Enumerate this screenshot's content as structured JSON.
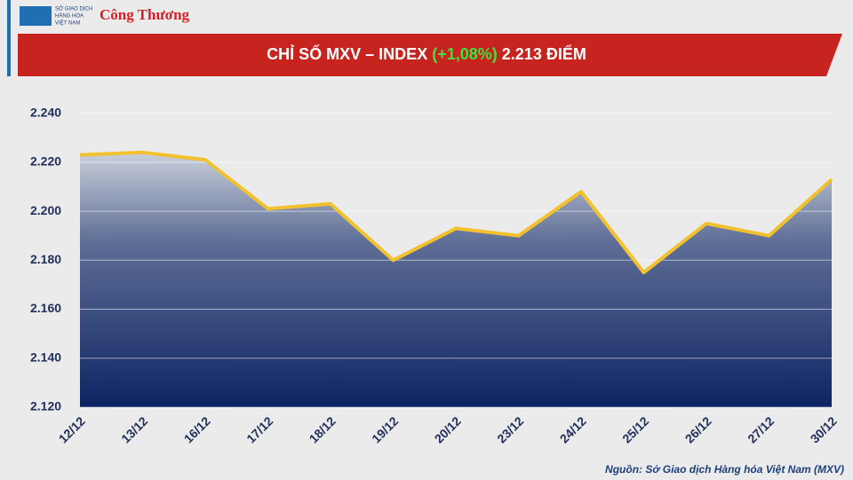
{
  "header": {
    "exchange_name": [
      "SỞ GIAO DỊCH",
      "HÀNG HÓA",
      "VIỆT NAM"
    ],
    "publisher": "Công Thương"
  },
  "chart_data": {
    "type": "area",
    "title": "CHỈ SỐ MXV – INDEX",
    "title_change": "(+1,08%)",
    "title_value": "2.213 ĐIỂM",
    "categories": [
      "12/12",
      "13/12",
      "16/12",
      "17/12",
      "18/12",
      "19/12",
      "20/12",
      "23/12",
      "24/12",
      "25/12",
      "26/12",
      "27/12",
      "30/12"
    ],
    "series": [
      {
        "name": "MXV-Index",
        "color": "#f2c12e",
        "values": [
          2223,
          2224,
          2221,
          2201,
          2203,
          2180,
          2193,
          2190,
          2208,
          2175,
          2195,
          2190,
          2213
        ]
      }
    ],
    "ylim": [
      2120,
      2250
    ],
    "yticks": [
      {
        "value": 2120,
        "label": "2.120"
      },
      {
        "value": 2140,
        "label": "2.140"
      },
      {
        "value": 2160,
        "label": "2.160"
      },
      {
        "value": 2180,
        "label": "2.180"
      },
      {
        "value": 2200,
        "label": "2.200"
      },
      {
        "value": 2220,
        "label": "2.220"
      },
      {
        "value": 2240,
        "label": "2.240"
      }
    ],
    "grid": true
  },
  "source": "Nguồn: Sở Giao dịch Hàng hóa Việt Nam (MXV)"
}
